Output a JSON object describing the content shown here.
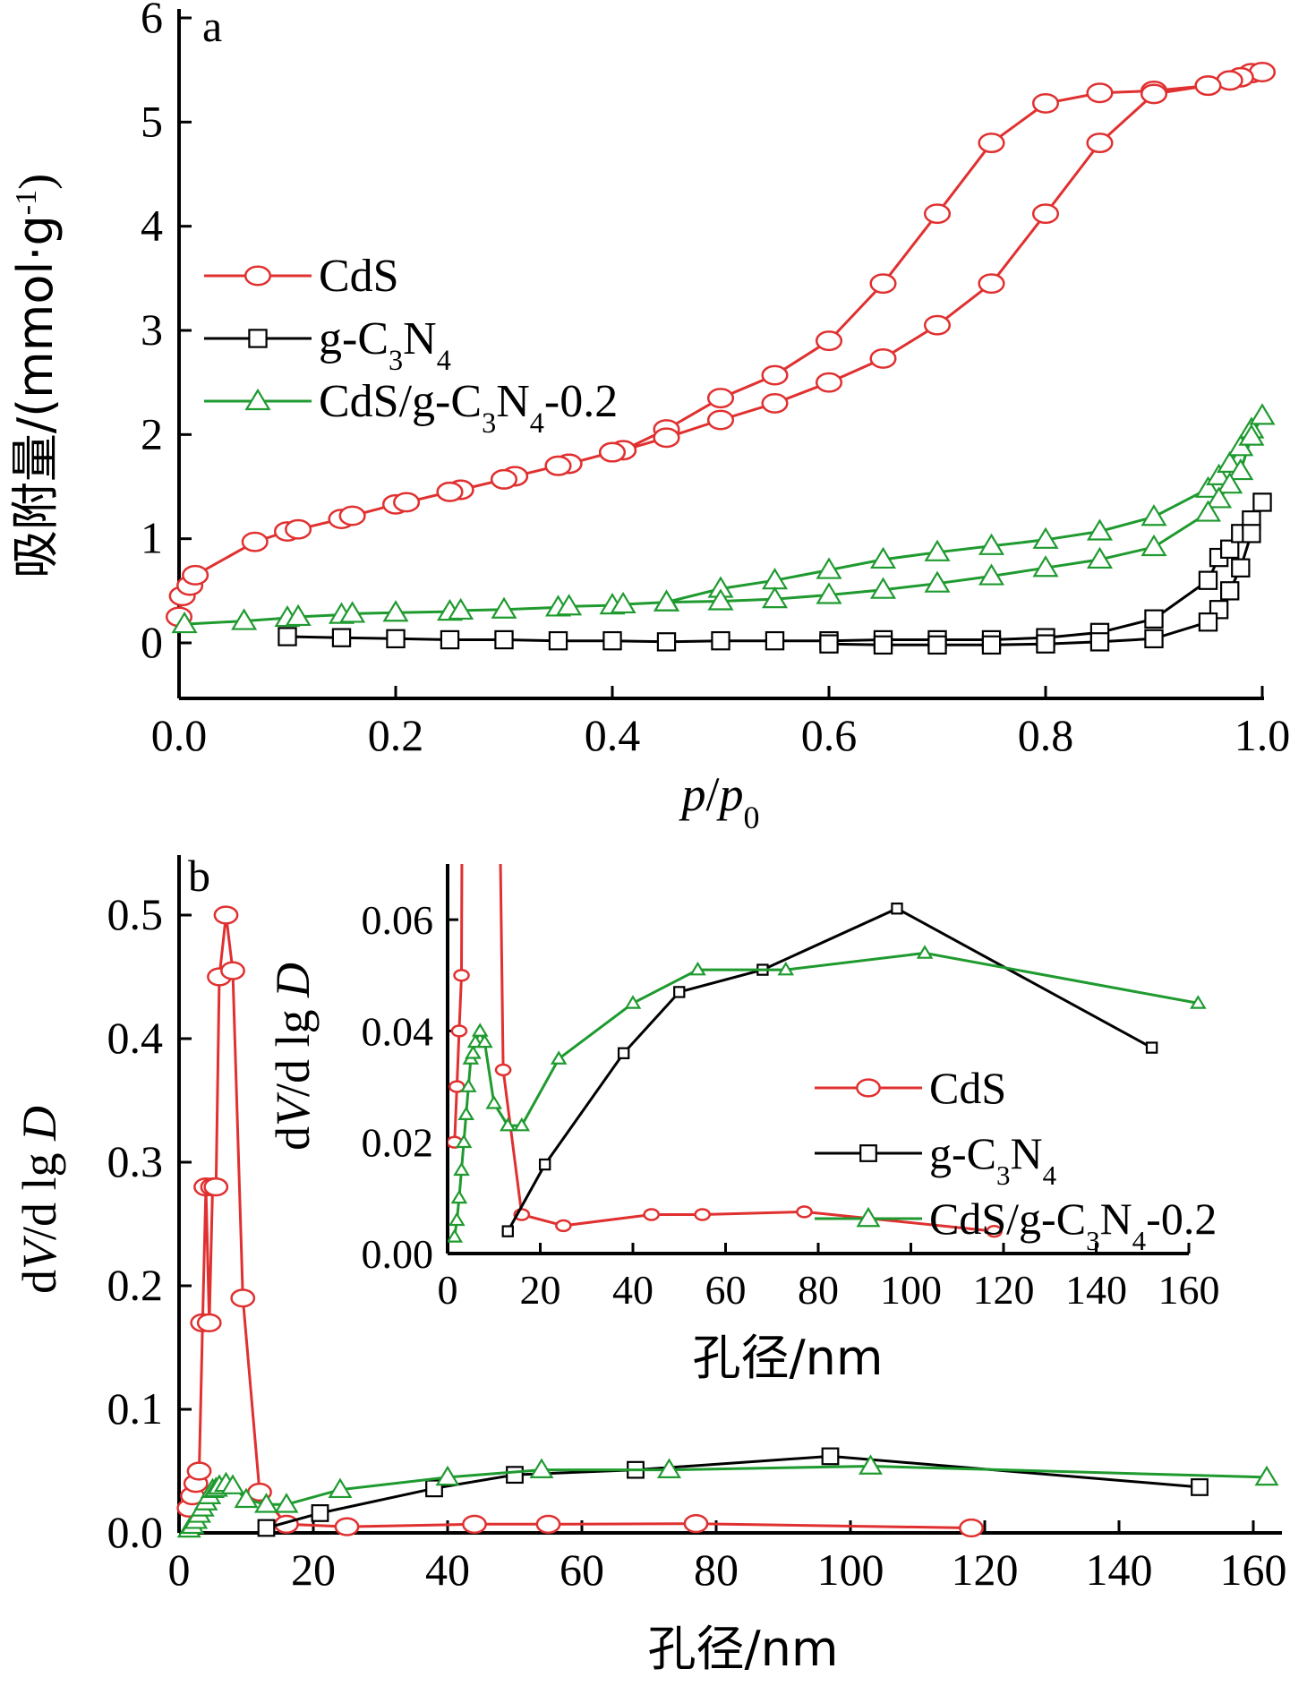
{
  "chart_data": [
    {
      "type": "line",
      "panel": "a",
      "xlabel_parts": [
        "p",
        "/",
        "p",
        "0"
      ],
      "ylabel": "吸附量/(mmol·g-1)",
      "ylabel_main": "吸附量/(mmol·g",
      "ylabel_sup": "-1",
      "ylabel_close": ")",
      "xlim": [
        0,
        1.0
      ],
      "ylim": [
        -0.5,
        6
      ],
      "xticks": [
        "0.0",
        "0.2",
        "0.4",
        "0.6",
        "0.8",
        "1.0"
      ],
      "yticks": [
        "0",
        "1",
        "2",
        "3",
        "4",
        "5",
        "6"
      ],
      "xtick_values": [
        0,
        0.2,
        0.4,
        0.6,
        0.8,
        1.0
      ],
      "ytick_values": [
        0,
        1,
        2,
        3,
        4,
        5,
        6
      ],
      "legend": [
        {
          "label": "CdS",
          "marker": "circle",
          "color": "#e03030"
        },
        {
          "label_parts": [
            "g-C",
            "3",
            "N",
            "4"
          ],
          "marker": "square",
          "color": "#000000"
        },
        {
          "label_parts": [
            "CdS/g-C",
            "3",
            "N",
            "4",
            "-0.2"
          ],
          "marker": "triangle",
          "color": "#1f9a2f"
        }
      ],
      "series": [
        {
          "name": "CdS",
          "color": "#e03030",
          "marker": "circle",
          "points": [
            [
              0.0,
              0.25
            ],
            [
              0.003,
              0.45
            ],
            [
              0.01,
              0.55
            ],
            [
              0.015,
              0.65
            ],
            [
              0.07,
              0.97
            ],
            [
              0.1,
              1.07
            ],
            [
              0.11,
              1.09
            ],
            [
              0.15,
              1.19
            ],
            [
              0.16,
              1.22
            ],
            [
              0.2,
              1.33
            ],
            [
              0.21,
              1.35
            ],
            [
              0.25,
              1.45
            ],
            [
              0.26,
              1.47
            ],
            [
              0.3,
              1.57
            ],
            [
              0.31,
              1.6
            ],
            [
              0.35,
              1.7
            ],
            [
              0.36,
              1.72
            ],
            [
              0.4,
              1.83
            ],
            [
              0.41,
              1.85
            ],
            [
              0.45,
              2.05
            ],
            [
              0.5,
              2.35
            ],
            [
              0.55,
              2.57
            ],
            [
              0.6,
              2.9
            ],
            [
              0.65,
              3.45
            ],
            [
              0.7,
              4.12
            ],
            [
              0.75,
              4.8
            ],
            [
              0.8,
              5.18
            ],
            [
              0.85,
              5.28
            ],
            [
              0.9,
              5.3
            ],
            [
              0.95,
              5.35
            ],
            [
              0.97,
              5.4
            ],
            [
              0.98,
              5.43
            ],
            [
              0.99,
              5.47
            ],
            [
              1.0,
              5.48
            ],
            [
              0.98,
              5.43
            ],
            [
              0.97,
              5.4
            ],
            [
              0.95,
              5.35
            ],
            [
              0.9,
              5.27
            ],
            [
              0.85,
              4.8
            ],
            [
              0.8,
              4.12
            ],
            [
              0.75,
              3.45
            ],
            [
              0.7,
              3.05
            ],
            [
              0.65,
              2.73
            ],
            [
              0.6,
              2.5
            ],
            [
              0.55,
              2.3
            ],
            [
              0.5,
              2.14
            ],
            [
              0.45,
              1.97
            ],
            [
              0.41,
              1.85
            ],
            [
              0.4,
              1.83
            ],
            [
              0.36,
              1.72
            ],
            [
              0.35,
              1.7
            ],
            [
              0.31,
              1.6
            ],
            [
              0.3,
              1.57
            ],
            [
              0.26,
              1.47
            ],
            [
              0.25,
              1.45
            ]
          ]
        },
        {
          "name": "g-C3N4",
          "color": "#000000",
          "marker": "square",
          "points": [
            [
              0.1,
              0.06
            ],
            [
              0.15,
              0.05
            ],
            [
              0.2,
              0.04
            ],
            [
              0.25,
              0.03
            ],
            [
              0.3,
              0.03
            ],
            [
              0.35,
              0.02
            ],
            [
              0.4,
              0.02
            ],
            [
              0.45,
              0.01
            ],
            [
              0.5,
              0.02
            ],
            [
              0.55,
              0.02
            ],
            [
              0.6,
              0.02
            ],
            [
              0.65,
              0.03
            ],
            [
              0.7,
              0.03
            ],
            [
              0.75,
              0.03
            ],
            [
              0.8,
              0.05
            ],
            [
              0.85,
              0.1
            ],
            [
              0.9,
              0.23
            ],
            [
              0.95,
              0.6
            ],
            [
              0.96,
              0.82
            ],
            [
              0.97,
              0.9
            ],
            [
              0.98,
              1.05
            ],
            [
              0.99,
              1.18
            ],
            [
              1.0,
              1.35
            ],
            [
              0.99,
              1.05
            ],
            [
              0.98,
              0.72
            ],
            [
              0.97,
              0.5
            ],
            [
              0.96,
              0.32
            ],
            [
              0.95,
              0.2
            ],
            [
              0.9,
              0.04
            ],
            [
              0.85,
              0.01
            ],
            [
              0.8,
              -0.01
            ],
            [
              0.75,
              -0.02
            ],
            [
              0.7,
              -0.02
            ],
            [
              0.65,
              -0.02
            ],
            [
              0.6,
              -0.01
            ]
          ]
        },
        {
          "name": "CdS/g-C3N4-0.2",
          "color": "#1f9a2f",
          "marker": "triangle",
          "points": [
            [
              0.005,
              0.18
            ],
            [
              0.06,
              0.21
            ],
            [
              0.1,
              0.24
            ],
            [
              0.11,
              0.25
            ],
            [
              0.15,
              0.27
            ],
            [
              0.16,
              0.28
            ],
            [
              0.2,
              0.29
            ],
            [
              0.25,
              0.3
            ],
            [
              0.26,
              0.31
            ],
            [
              0.3,
              0.32
            ],
            [
              0.35,
              0.34
            ],
            [
              0.36,
              0.35
            ],
            [
              0.4,
              0.36
            ],
            [
              0.41,
              0.37
            ],
            [
              0.45,
              0.39
            ],
            [
              0.5,
              0.52
            ],
            [
              0.55,
              0.6
            ],
            [
              0.6,
              0.7
            ],
            [
              0.65,
              0.8
            ],
            [
              0.7,
              0.87
            ],
            [
              0.75,
              0.93
            ],
            [
              0.8,
              0.99
            ],
            [
              0.85,
              1.07
            ],
            [
              0.9,
              1.21
            ],
            [
              0.95,
              1.48
            ],
            [
              0.96,
              1.6
            ],
            [
              0.97,
              1.72
            ],
            [
              0.98,
              1.88
            ],
            [
              0.99,
              2.05
            ],
            [
              1.0,
              2.18
            ],
            [
              0.99,
              1.98
            ],
            [
              0.98,
              1.65
            ],
            [
              0.97,
              1.52
            ],
            [
              0.96,
              1.38
            ],
            [
              0.95,
              1.25
            ],
            [
              0.9,
              0.92
            ],
            [
              0.85,
              0.8
            ],
            [
              0.8,
              0.72
            ],
            [
              0.75,
              0.64
            ],
            [
              0.7,
              0.57
            ],
            [
              0.65,
              0.51
            ],
            [
              0.6,
              0.46
            ],
            [
              0.55,
              0.42
            ],
            [
              0.5,
              0.4
            ],
            [
              0.45,
              0.39
            ]
          ]
        }
      ]
    },
    {
      "type": "line",
      "panel": "b",
      "xlabel": "孔径/nm",
      "ylabel_parts": [
        "d",
        "V",
        "/d lg ",
        "D"
      ],
      "xlim": [
        0,
        165
      ],
      "ylim": [
        0,
        0.55
      ],
      "xticks": [
        "0",
        "20",
        "40",
        "60",
        "80",
        "100",
        "120",
        "140",
        "160"
      ],
      "yticks": [
        "0.0",
        "0.1",
        "0.2",
        "0.3",
        "0.4",
        "0.5"
      ],
      "xtick_values": [
        0,
        20,
        40,
        60,
        80,
        100,
        120,
        140,
        160
      ],
      "ytick_values": [
        0,
        0.1,
        0.2,
        0.3,
        0.4,
        0.5
      ],
      "series": [
        {
          "name": "CdS",
          "color": "#e03030",
          "marker": "circle",
          "points": [
            [
              1.5,
              0.02
            ],
            [
              2,
              0.03
            ],
            [
              2.5,
              0.04
            ],
            [
              3,
              0.05
            ],
            [
              3.5,
              0.17
            ],
            [
              4,
              0.28
            ],
            [
              4.5,
              0.17
            ],
            [
              5,
              0.28
            ],
            [
              5.5,
              0.28
            ],
            [
              6,
              0.45
            ],
            [
              7,
              0.5
            ],
            [
              8,
              0.455
            ],
            [
              9.5,
              0.19
            ],
            [
              12,
              0.033
            ],
            [
              16,
              0.007
            ],
            [
              25,
              0.005
            ],
            [
              44,
              0.007
            ],
            [
              55,
              0.007
            ],
            [
              77,
              0.0075
            ],
            [
              118,
              0.004
            ]
          ]
        },
        {
          "name": "g-C3N4",
          "color": "#000000",
          "marker": "square",
          "points": [
            [
              13,
              0.004
            ],
            [
              21,
              0.016
            ],
            [
              38,
              0.036
            ],
            [
              50,
              0.047
            ],
            [
              68,
              0.051
            ],
            [
              97,
              0.062
            ],
            [
              152,
              0.037
            ]
          ]
        },
        {
          "name": "CdS/g-C3N4-0.2",
          "color": "#1f9a2f",
          "marker": "triangle",
          "points": [
            [
              1.5,
              0.003
            ],
            [
              2,
              0.006
            ],
            [
              2.5,
              0.01
            ],
            [
              3,
              0.015
            ],
            [
              3.5,
              0.02
            ],
            [
              4,
              0.025
            ],
            [
              4.5,
              0.03
            ],
            [
              5,
              0.035
            ],
            [
              5.5,
              0.036
            ],
            [
              6,
              0.038
            ],
            [
              7,
              0.04
            ],
            [
              8,
              0.038
            ],
            [
              10,
              0.027
            ],
            [
              13,
              0.023
            ],
            [
              16,
              0.023
            ],
            [
              24,
              0.035
            ],
            [
              40,
              0.045
            ],
            [
              54,
              0.051
            ],
            [
              73,
              0.051
            ],
            [
              103,
              0.054
            ],
            [
              162,
              0.045
            ]
          ]
        }
      ],
      "inset": {
        "xlabel": "孔径/nm",
        "ylabel_parts": [
          "d",
          "V",
          "/d lg ",
          "D"
        ],
        "xlim": [
          0,
          160
        ],
        "ylim": [
          0,
          0.07
        ],
        "xticks": [
          "0",
          "20",
          "40",
          "60",
          "80",
          "100",
          "120",
          "140",
          "160"
        ],
        "yticks": [
          "0.00",
          "0.02",
          "0.04",
          "0.06"
        ],
        "xtick_values": [
          0,
          20,
          40,
          60,
          80,
          100,
          120,
          140,
          160
        ],
        "ytick_values": [
          0,
          0.02,
          0.04,
          0.06
        ],
        "legend": [
          {
            "label": "CdS",
            "marker": "circle",
            "color": "#e03030"
          },
          {
            "label_parts": [
              "g-C",
              "3",
              "N",
              "4"
            ],
            "marker": "square",
            "color": "#000000"
          },
          {
            "label_parts": [
              "CdS/g-C",
              "3",
              "N",
              "4",
              "-0.2"
            ],
            "marker": "triangle",
            "color": "#1f9a2f"
          }
        ]
      }
    }
  ]
}
